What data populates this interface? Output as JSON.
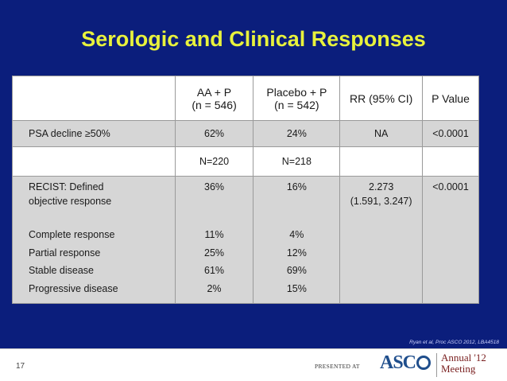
{
  "title": "Serologic and Clinical Responses",
  "table": {
    "header": {
      "col1": "",
      "col2_line1": "AA + P",
      "col2_line2": "(n = 546)",
      "col3_line1": "Placebo + P",
      "col3_line2": "(n = 542)",
      "col4": "RR (95% CI)",
      "col5": "P Value"
    },
    "psa_row": {
      "label": "PSA decline ≥50%",
      "aa": "62%",
      "placebo": "24%",
      "rr": "NA",
      "p": "<0.0001"
    },
    "n_row": {
      "label": "",
      "aa": "N=220",
      "placebo": "N=218"
    },
    "recist": {
      "label_line1": "RECIST: Defined",
      "label_line2": "objective response",
      "aa": "36%",
      "placebo": "16%",
      "rr_line1": "2.273",
      "rr_line2": "(1.591, 3.247)",
      "p": "<0.0001",
      "subrows": [
        {
          "label": "Complete response",
          "aa": "11%",
          "placebo": "4%"
        },
        {
          "label": "Partial response",
          "aa": "25%",
          "placebo": "12%"
        },
        {
          "label": "Stable disease",
          "aa": "61%",
          "placebo": "69%"
        },
        {
          "label": "Progressive disease",
          "aa": "2%",
          "placebo": "15%"
        }
      ]
    }
  },
  "citation": "Ryan et al, Proc ASCO 2012, LBA4518",
  "footer": {
    "page_number": "17",
    "presented_at": "PRESENTED AT",
    "logo_asco": "ASC",
    "logo_annual_line1": "Annual '12",
    "logo_annual_line2": "Meeting"
  },
  "colors": {
    "background": "#0b1e7c",
    "title": "#e8f23c",
    "row_shade": "#d6d6d6"
  }
}
